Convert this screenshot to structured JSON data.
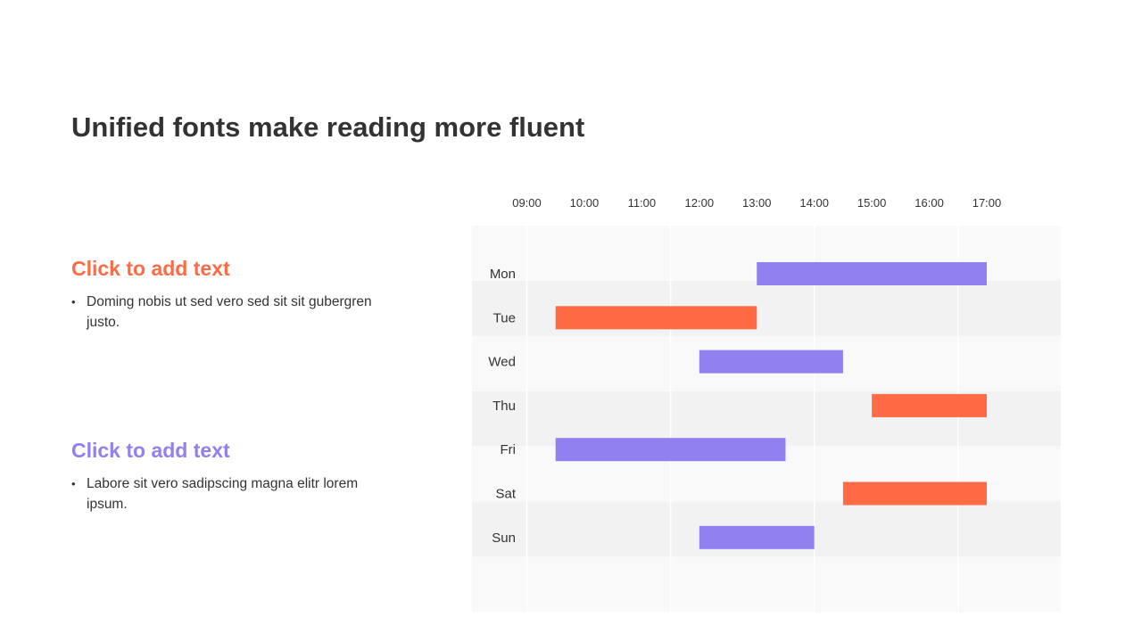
{
  "title": "Unified fonts make reading more fluent",
  "blocks": [
    {
      "heading": "Click to add text",
      "color": "#FF6B45",
      "bullet": "Doming nobis ut sed vero sed sit sit gubergren justo."
    },
    {
      "heading": "Click to add text",
      "color": "#9080F0",
      "bullet": "Labore sit vero sadipscing magna elitr lorem ipsum."
    }
  ],
  "colors": {
    "orange": "#FF6B45",
    "purple": "#9080F0",
    "row_light": "#F9F9F9",
    "row_dark": "#F2F2F2"
  },
  "chart_data": {
    "type": "bar",
    "orientation": "horizontal-gantt",
    "x_ticks": [
      "09:00",
      "10:00",
      "11:00",
      "12:00",
      "13:00",
      "14:00",
      "15:00",
      "16:00",
      "17:00"
    ],
    "xlim": [
      9,
      17
    ],
    "categories": [
      "Mon",
      "Tue",
      "Wed",
      "Thu",
      "Fri",
      "Sat",
      "Sun"
    ],
    "tasks": [
      {
        "day": "Mon",
        "start": 13.0,
        "end": 17.0,
        "color": "#9080F0"
      },
      {
        "day": "Tue",
        "start": 9.5,
        "end": 13.0,
        "color": "#FF6B45"
      },
      {
        "day": "Wed",
        "start": 12.0,
        "end": 14.5,
        "color": "#9080F0"
      },
      {
        "day": "Thu",
        "start": 15.0,
        "end": 17.0,
        "color": "#FF6B45"
      },
      {
        "day": "Fri",
        "start": 9.5,
        "end": 13.5,
        "color": "#9080F0"
      },
      {
        "day": "Sat",
        "start": 14.5,
        "end": 17.0,
        "color": "#FF6B45"
      },
      {
        "day": "Sun",
        "start": 12.0,
        "end": 14.0,
        "color": "#9080F0"
      }
    ],
    "grid": true,
    "legend": "none"
  }
}
